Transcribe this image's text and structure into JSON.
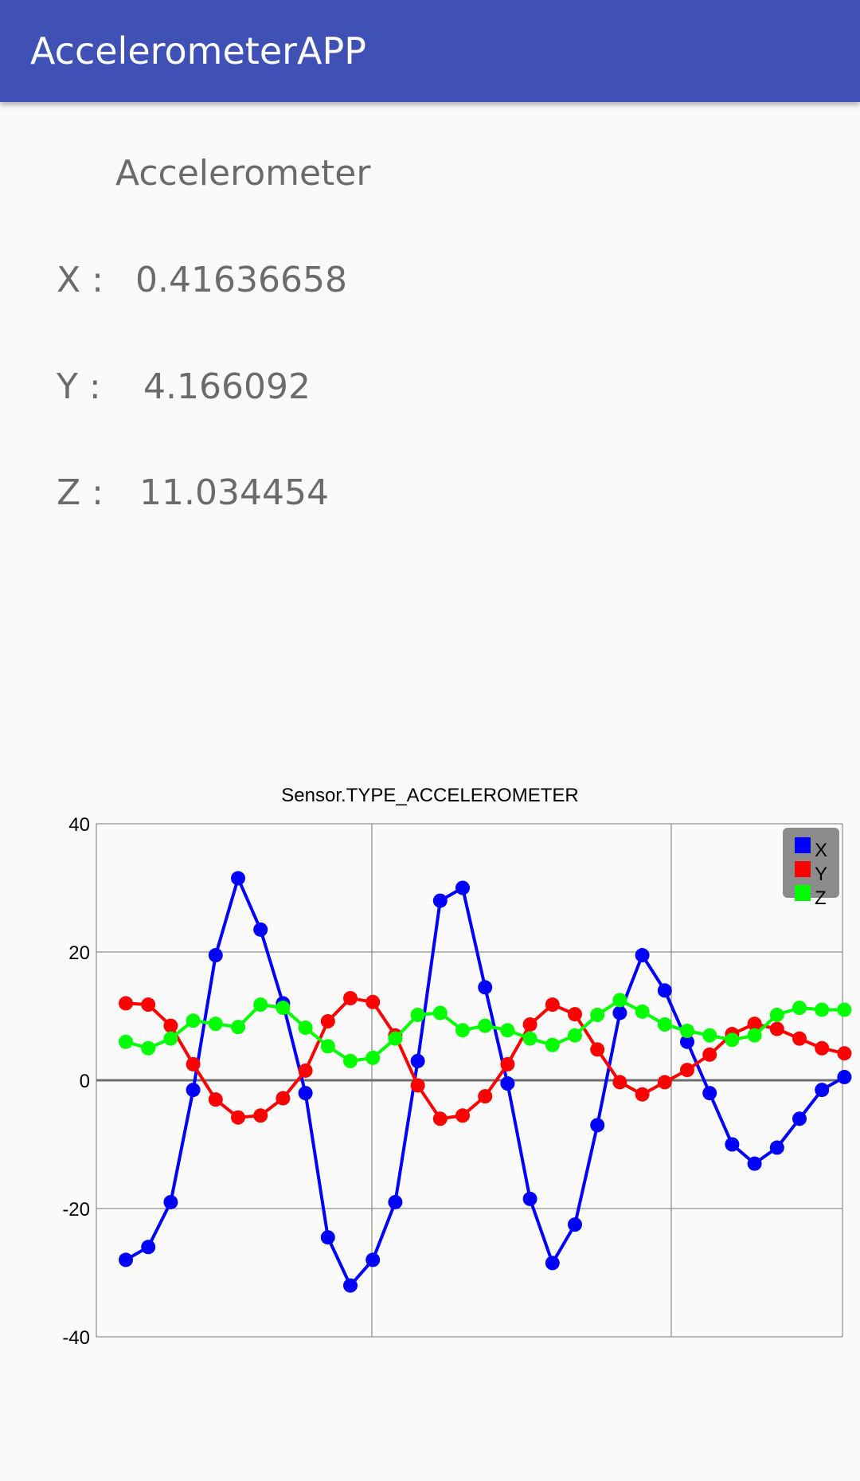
{
  "app": {
    "title": "AccelerometerAPP"
  },
  "main": {
    "heading": "Accelerometer",
    "rows": [
      {
        "label": "X :",
        "value": "0.41636658"
      },
      {
        "label": "Y :",
        "value": "4.166092"
      },
      {
        "label": "Z :",
        "value": "11.034454"
      }
    ]
  },
  "colors": {
    "appbar": "#3f51b5",
    "x": "#0000ff",
    "y": "#ff0000",
    "z": "#00ff00"
  },
  "chart_data": {
    "type": "line",
    "title": "Sensor.TYPE_ACCELEROMETER",
    "xlabel": "",
    "ylabel": "",
    "ylim": [
      -40,
      40
    ],
    "yticks": [
      40,
      20,
      0,
      -20,
      -40
    ],
    "grid": true,
    "legend_position": "top-right",
    "x": [
      1,
      2,
      3,
      4,
      5,
      6,
      7,
      8,
      9,
      10,
      11,
      12,
      13,
      14,
      15,
      16,
      17,
      18,
      19,
      20,
      21,
      22,
      23,
      24,
      25,
      26,
      27,
      28,
      29,
      30,
      31,
      32,
      33
    ],
    "series": [
      {
        "name": "X",
        "color": "#0000ff",
        "values": [
          -28,
          -26,
          -19,
          -1.5,
          19.5,
          31.5,
          23.5,
          12,
          -2,
          -24.5,
          -32,
          -28,
          -19,
          3,
          28,
          30,
          14.5,
          -0.5,
          -18.5,
          -28.5,
          -22.5,
          -7,
          10.5,
          19.5,
          14,
          6,
          -2,
          -10,
          -13,
          -10.5,
          -6,
          -1.5,
          0.5
        ]
      },
      {
        "name": "Y",
        "color": "#ff0000",
        "values": [
          12,
          11.8,
          8.5,
          2.5,
          -3,
          -5.8,
          -5.5,
          -2.8,
          1.5,
          9.2,
          12.8,
          12.2,
          7,
          -0.8,
          -6,
          -5.5,
          -2.5,
          2.5,
          8.7,
          11.8,
          10.3,
          4.8,
          -0.3,
          -2.2,
          -0.3,
          1.6,
          4,
          7.2,
          8.8,
          8,
          6.5,
          5,
          4.2
        ]
      },
      {
        "name": "Z",
        "color": "#00ff00",
        "values": [
          6,
          5,
          6.5,
          9.3,
          8.8,
          8.3,
          11.8,
          11.3,
          8.2,
          5.3,
          3,
          3.5,
          6.5,
          10.2,
          10.5,
          7.8,
          8.5,
          7.8,
          6.5,
          5.5,
          7,
          10.2,
          12.5,
          10.7,
          8.7,
          7.7,
          7,
          6.3,
          7,
          10.2,
          11.3,
          11,
          11
        ]
      }
    ]
  }
}
